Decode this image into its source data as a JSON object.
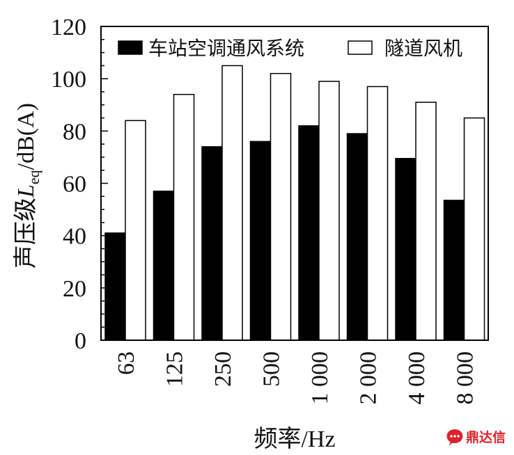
{
  "chart_data": {
    "type": "bar",
    "categories": [
      "63",
      "125",
      "250",
      "500",
      "1 000",
      "2 000",
      "4 000",
      "8 000"
    ],
    "series": [
      {
        "name": "车站空调通风系统",
        "color": "#000000",
        "values": [
          41,
          57,
          74,
          76,
          82,
          79,
          69.5,
          53.5
        ]
      },
      {
        "name": "隧道风机",
        "color": "#ffffff",
        "values": [
          84,
          94,
          105,
          102,
          99,
          97,
          91,
          85
        ]
      }
    ],
    "xlabel": "频率/Hz",
    "ylabel": "声压级L_eq/dB(A)",
    "ylabel_parts": {
      "prefix": "声压级",
      "var": "L",
      "sub": "eq",
      "suffix": "/dB(A)"
    },
    "ylim": [
      0,
      120
    ],
    "yticks": [
      0,
      20,
      40,
      60,
      80,
      100,
      120
    ],
    "grid": false,
    "legend_position": "top"
  },
  "watermark": {
    "text": "鼎达信",
    "logo_icon": "chat-bubble-icon"
  }
}
